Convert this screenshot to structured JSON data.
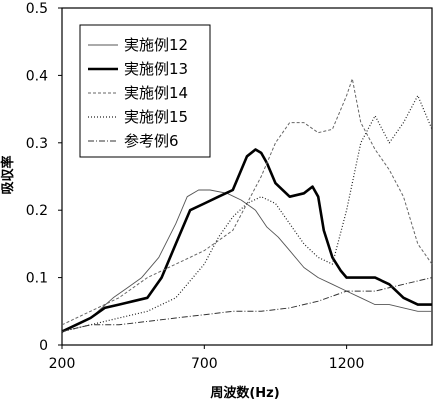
{
  "chart_data": {
    "type": "line",
    "title": "",
    "xlabel": "周波数(Hz)",
    "ylabel": "吸収率",
    "xlim": [
      200,
      1500
    ],
    "ylim": [
      0,
      0.5
    ],
    "x_ticks": [
      200,
      700,
      1200
    ],
    "y_ticks": [
      0,
      0.1,
      0.2,
      0.3,
      0.4,
      0.5
    ],
    "x_tick_labels": [
      "200",
      "700",
      "1200"
    ],
    "y_tick_labels": [
      "0",
      "0.1",
      "0.2",
      "0.3",
      "0.4",
      "0.5"
    ],
    "grid": false,
    "legend_position": "top-left",
    "series": [
      {
        "name": "実施例12",
        "style": "thin-solid",
        "x": [
          200,
          300,
          380,
          430,
          480,
          540,
          600,
          640,
          680,
          720,
          780,
          830,
          880,
          920,
          960,
          1000,
          1050,
          1100,
          1150,
          1200,
          1250,
          1300,
          1350,
          1400,
          1450,
          1500
        ],
        "y": [
          0.02,
          0.04,
          0.07,
          0.085,
          0.1,
          0.13,
          0.18,
          0.22,
          0.23,
          0.23,
          0.225,
          0.215,
          0.2,
          0.175,
          0.16,
          0.14,
          0.115,
          0.1,
          0.09,
          0.08,
          0.07,
          0.06,
          0.06,
          0.055,
          0.05,
          0.05
        ]
      },
      {
        "name": "実施例13",
        "style": "thick-solid",
        "x": [
          200,
          250,
          300,
          350,
          400,
          450,
          500,
          550,
          600,
          650,
          700,
          750,
          800,
          850,
          880,
          900,
          920,
          950,
          1000,
          1050,
          1080,
          1100,
          1120,
          1150,
          1180,
          1200,
          1250,
          1300,
          1350,
          1400,
          1450,
          1500
        ],
        "y": [
          0.02,
          0.03,
          0.04,
          0.055,
          0.06,
          0.065,
          0.07,
          0.1,
          0.15,
          0.2,
          0.21,
          0.22,
          0.23,
          0.28,
          0.29,
          0.285,
          0.27,
          0.24,
          0.22,
          0.225,
          0.235,
          0.22,
          0.17,
          0.13,
          0.11,
          0.1,
          0.1,
          0.1,
          0.09,
          0.07,
          0.06,
          0.06
        ]
      },
      {
        "name": "実施例14",
        "style": "dashed",
        "x": [
          200,
          300,
          400,
          500,
          600,
          700,
          800,
          900,
          950,
          1000,
          1050,
          1100,
          1150,
          1200,
          1220,
          1250,
          1300,
          1350,
          1400,
          1450,
          1500
        ],
        "y": [
          0.03,
          0.05,
          0.07,
          0.1,
          0.12,
          0.14,
          0.17,
          0.25,
          0.3,
          0.33,
          0.33,
          0.315,
          0.32,
          0.37,
          0.395,
          0.33,
          0.29,
          0.26,
          0.22,
          0.15,
          0.12
        ]
      },
      {
        "name": "実施例15",
        "style": "dotted",
        "x": [
          200,
          300,
          400,
          500,
          600,
          700,
          750,
          800,
          850,
          900,
          950,
          1000,
          1050,
          1100,
          1150,
          1200,
          1250,
          1300,
          1350,
          1400,
          1450,
          1500
        ],
        "y": [
          0.02,
          0.03,
          0.04,
          0.05,
          0.07,
          0.12,
          0.16,
          0.19,
          0.21,
          0.22,
          0.21,
          0.18,
          0.15,
          0.13,
          0.12,
          0.2,
          0.3,
          0.34,
          0.3,
          0.33,
          0.37,
          0.32
        ]
      },
      {
        "name": "参考例6",
        "style": "dash-dot",
        "x": [
          200,
          300,
          400,
          500,
          600,
          700,
          800,
          900,
          1000,
          1100,
          1200,
          1300,
          1400,
          1500
        ],
        "y": [
          0.02,
          0.03,
          0.03,
          0.035,
          0.04,
          0.045,
          0.05,
          0.05,
          0.055,
          0.065,
          0.08,
          0.08,
          0.09,
          0.1
        ]
      }
    ]
  }
}
